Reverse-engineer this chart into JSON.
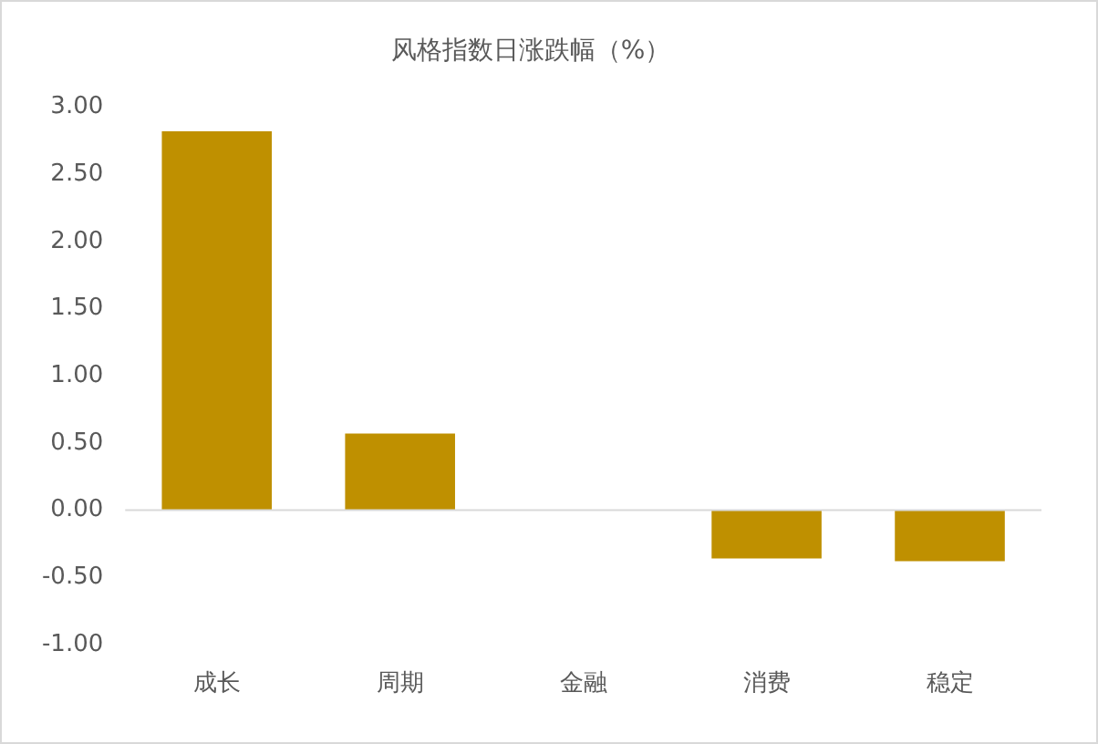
{
  "chart_data": {
    "type": "bar",
    "title": "风格指数日涨跌幅（%）",
    "categories": [
      "成长",
      "周期",
      "金融",
      "消费",
      "稳定"
    ],
    "values": [
      2.82,
      0.57,
      0,
      -0.36,
      -0.38
    ],
    "color": "#bf9000",
    "ylim": [
      -1,
      3
    ],
    "yticks": [
      {
        "value": -1,
        "label": "-1.00"
      },
      {
        "value": -0.5,
        "label": "-0.50"
      },
      {
        "value": 0,
        "label": "0.00"
      },
      {
        "value": 0.5,
        "label": "0.50"
      },
      {
        "value": 1,
        "label": "1.00"
      },
      {
        "value": 1.5,
        "label": "1.50"
      },
      {
        "value": 2,
        "label": "2.00"
      },
      {
        "value": 2.5,
        "label": "2.50"
      },
      {
        "value": 3,
        "label": "3.00"
      }
    ],
    "ref_lines": [
      {
        "axis": "y",
        "value": 0,
        "color": "#d9d9d9"
      }
    ],
    "grid": false,
    "legend": false
  }
}
